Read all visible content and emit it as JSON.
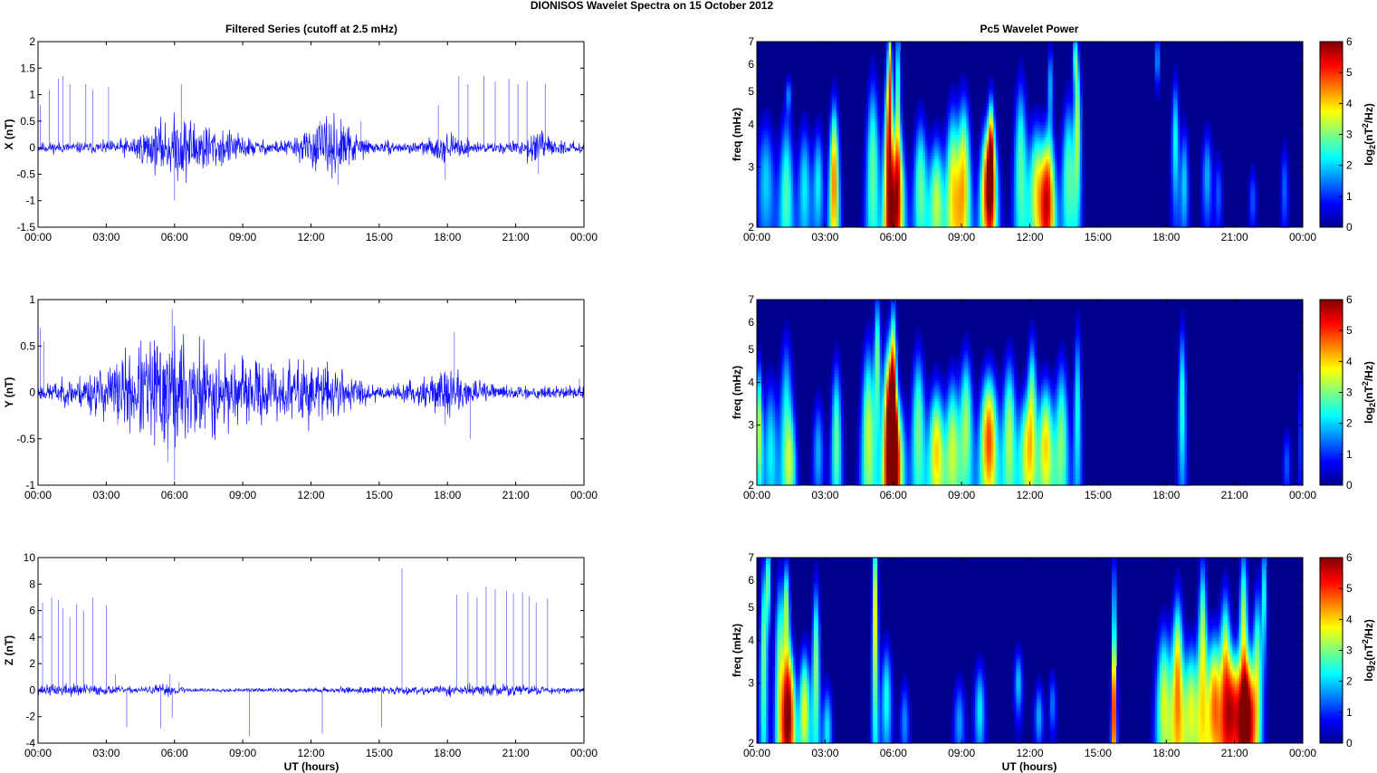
{
  "figure": {
    "suptitle": "DIONISOS Wavelet Spectra on 15 October   2012",
    "left_title": "Filtered Series (cutoff at 2.5 mHz)",
    "right_title": "Pc5 Wavelet Power",
    "xlabel": "UT (hours)",
    "colorbar_label": "log2(nT2/Hz)"
  },
  "colors": {
    "trace": "#1010ff",
    "background": "#00008f"
  },
  "chart_data": [
    {
      "type": "line",
      "panel": "X component",
      "ylabel": "X (nT)",
      "xticks": [
        "00:00",
        "03:00",
        "06:00",
        "09:00",
        "12:00",
        "15:00",
        "18:00",
        "21:00",
        "00:00"
      ],
      "xlim_hours": [
        0,
        24
      ],
      "ylim": [
        -1.5,
        2
      ],
      "yticks": [
        "-1.5",
        "-1",
        "-0.5",
        "0",
        "0.5",
        "1",
        "1.5",
        "2"
      ],
      "baseline_noise": 0.07,
      "activity": [
        [
          5.8,
          0.22,
          1.2
        ],
        [
          6.6,
          0.15,
          0.8
        ],
        [
          8.2,
          0.12,
          0.9
        ],
        [
          12.6,
          0.18,
          1.0
        ],
        [
          13.1,
          0.14,
          0.6
        ],
        [
          18.0,
          0.1,
          0.6
        ],
        [
          21.9,
          0.12,
          0.5
        ]
      ],
      "spikes": [
        [
          0.1,
          0.8
        ],
        [
          0.5,
          1.1
        ],
        [
          0.9,
          1.3
        ],
        [
          1.1,
          1.35
        ],
        [
          1.4,
          1.2
        ],
        [
          2.1,
          1.2
        ],
        [
          2.4,
          1.1
        ],
        [
          3.1,
          1.15
        ],
        [
          6.3,
          1.2
        ],
        [
          12.4,
          0.5
        ],
        [
          14.2,
          0.5
        ],
        [
          17.6,
          0.8
        ],
        [
          18.5,
          1.35
        ],
        [
          18.9,
          1.2
        ],
        [
          19.6,
          1.35
        ],
        [
          20.1,
          1.25
        ],
        [
          20.7,
          1.3
        ],
        [
          21.1,
          1.2
        ],
        [
          21.5,
          1.25
        ],
        [
          22.3,
          1.2
        ],
        [
          4.8,
          -0.3
        ],
        [
          6.0,
          -1.0
        ],
        [
          13.2,
          -0.7
        ],
        [
          17.9,
          -0.6
        ],
        [
          22.0,
          -0.5
        ]
      ],
      "noise_seed": 11
    },
    {
      "type": "line",
      "panel": "Y component",
      "ylabel": "Y (nT)",
      "xticks": [
        "00:00",
        "03:00",
        "06:00",
        "09:00",
        "12:00",
        "15:00",
        "18:00",
        "21:00",
        "00:00"
      ],
      "xlim_hours": [
        0,
        24
      ],
      "ylim": [
        -1,
        1
      ],
      "yticks": [
        "-1",
        "-0.5",
        "0",
        "0.5",
        "1"
      ],
      "baseline_noise": 0.05,
      "activity": [
        [
          3.5,
          0.14,
          1.5
        ],
        [
          5.9,
          0.32,
          1.3
        ],
        [
          7.5,
          0.14,
          1.2
        ],
        [
          10.3,
          0.15,
          1.2
        ],
        [
          12.6,
          0.14,
          1.1
        ],
        [
          18.0,
          0.1,
          1.0
        ]
      ],
      "spikes": [
        [
          0.1,
          0.7
        ],
        [
          0.25,
          0.55
        ],
        [
          5.9,
          0.9
        ],
        [
          6.0,
          -0.95
        ],
        [
          5.7,
          -0.75
        ],
        [
          3.5,
          -0.35
        ],
        [
          18.3,
          0.65
        ],
        [
          19.0,
          -0.5
        ],
        [
          17.9,
          -0.35
        ],
        [
          23.8,
          0.15
        ]
      ],
      "noise_seed": 23
    },
    {
      "type": "line",
      "panel": "Z component",
      "ylabel": "Z (nT)",
      "xticks": [
        "00:00",
        "03:00",
        "06:00",
        "09:00",
        "12:00",
        "15:00",
        "18:00",
        "21:00",
        "00:00"
      ],
      "xlim_hours": [
        0,
        24
      ],
      "ylim": [
        -4,
        10
      ],
      "yticks": [
        "-4",
        "-2",
        "0",
        "2",
        "4",
        "6",
        "8",
        "10"
      ],
      "baseline_noise": 0.09,
      "activity": [
        [
          1.5,
          0.25,
          1.5
        ],
        [
          5.6,
          0.2,
          0.6
        ],
        [
          17.0,
          0.12,
          3.0
        ],
        [
          20.5,
          0.15,
          2.0
        ]
      ],
      "spikes": [
        [
          0.2,
          6.6
        ],
        [
          0.6,
          7.0
        ],
        [
          0.9,
          6.8
        ],
        [
          1.1,
          6.2
        ],
        [
          1.4,
          5.5
        ],
        [
          1.7,
          6.5
        ],
        [
          2.0,
          6.0
        ],
        [
          2.4,
          7.0
        ],
        [
          3.0,
          6.4
        ],
        [
          3.4,
          1.2
        ],
        [
          5.8,
          1.2
        ],
        [
          16.0,
          9.2
        ],
        [
          18.4,
          7.2
        ],
        [
          18.9,
          7.4
        ],
        [
          19.3,
          7.0
        ],
        [
          19.7,
          7.8
        ],
        [
          20.1,
          7.6
        ],
        [
          20.6,
          7.5
        ],
        [
          20.9,
          7.3
        ],
        [
          21.3,
          7.4
        ],
        [
          21.6,
          7.1
        ],
        [
          21.9,
          6.6
        ],
        [
          22.4,
          6.9
        ],
        [
          3.9,
          -2.8
        ],
        [
          5.4,
          -2.9
        ],
        [
          5.9,
          -2.1
        ],
        [
          9.3,
          -3.5
        ],
        [
          12.5,
          -3.3
        ],
        [
          15.1,
          -2.8
        ],
        [
          6.2,
          0.6
        ],
        [
          4.8,
          0.2
        ]
      ],
      "noise_seed": 37
    },
    {
      "type": "heatmap",
      "panel": "X wavelet power",
      "ylabel": "freq (mHz)",
      "yticks": [
        "2",
        "3",
        "4",
        "5",
        "6",
        "7"
      ],
      "xticks": [
        "00:00",
        "03:00",
        "06:00",
        "09:00",
        "12:00",
        "15:00",
        "18:00",
        "21:00",
        "00:00"
      ],
      "colorbar_ticks": [
        "0",
        "1",
        "2",
        "3",
        "4",
        "5",
        "6"
      ],
      "blobs": [
        [
          0.4,
          2.7,
          0.25,
          0.9,
          2.0
        ],
        [
          1.3,
          2.5,
          0.2,
          1.1,
          2.7
        ],
        [
          1.4,
          4.9,
          0.1,
          0.4,
          1.5
        ],
        [
          2.1,
          2.6,
          0.18,
          0.9,
          2.2
        ],
        [
          2.7,
          2.7,
          0.15,
          0.8,
          2.2
        ],
        [
          3.4,
          2.7,
          0.14,
          1.2,
          4.6
        ],
        [
          5.1,
          2.9,
          0.2,
          1.6,
          2.9
        ],
        [
          5.8,
          2.9,
          0.15,
          2.0,
          5.0
        ],
        [
          5.85,
          6.0,
          0.08,
          1.6,
          3.0
        ],
        [
          6.2,
          2.4,
          0.2,
          0.9,
          4.0
        ],
        [
          6.2,
          4.8,
          0.1,
          2.0,
          3.0
        ],
        [
          7.2,
          2.6,
          0.2,
          1.0,
          2.9
        ],
        [
          7.9,
          2.4,
          0.2,
          0.8,
          3.3
        ],
        [
          8.6,
          2.6,
          0.2,
          1.2,
          3.5
        ],
        [
          9.1,
          2.7,
          0.2,
          1.3,
          3.9
        ],
        [
          10.2,
          2.6,
          0.22,
          0.9,
          5.8
        ],
        [
          10.3,
          3.6,
          0.1,
          0.9,
          3.0
        ],
        [
          11.6,
          3.0,
          0.2,
          1.5,
          2.8
        ],
        [
          12.3,
          2.6,
          0.22,
          0.9,
          3.4
        ],
        [
          12.8,
          2.4,
          0.2,
          0.9,
          5.0
        ],
        [
          13.7,
          2.8,
          0.2,
          1.2,
          2.8
        ],
        [
          14.1,
          4.0,
          0.12,
          1.5,
          3.2
        ],
        [
          14.0,
          6.3,
          0.1,
          0.8,
          2.5
        ],
        [
          12.9,
          5.2,
          0.1,
          1.0,
          2.0
        ],
        [
          17.6,
          6.2,
          0.08,
          0.8,
          2.0
        ],
        [
          18.4,
          3.6,
          0.12,
          1.2,
          2.4
        ],
        [
          18.8,
          2.7,
          0.12,
          0.8,
          2.0
        ],
        [
          19.8,
          2.8,
          0.15,
          0.7,
          1.8
        ],
        [
          20.3,
          2.5,
          0.1,
          0.5,
          1.3
        ],
        [
          21.8,
          2.4,
          0.1,
          0.4,
          1.3
        ],
        [
          23.2,
          2.6,
          0.1,
          0.6,
          1.4
        ]
      ]
    },
    {
      "type": "heatmap",
      "panel": "Y wavelet power",
      "ylabel": "freq (mHz)",
      "yticks": [
        "2",
        "3",
        "4",
        "5",
        "6",
        "7"
      ],
      "xticks": [
        "00:00",
        "03:00",
        "06:00",
        "09:00",
        "12:00",
        "15:00",
        "18:00",
        "21:00",
        "00:00"
      ],
      "colorbar_ticks": [
        "0",
        "1",
        "2",
        "3",
        "4",
        "5",
        "6"
      ],
      "blobs": [
        [
          0.1,
          3.0,
          0.1,
          1.0,
          3.4
        ],
        [
          0.6,
          2.5,
          0.2,
          1.0,
          2.2
        ],
        [
          1.3,
          3.0,
          0.2,
          1.5,
          2.4
        ],
        [
          1.5,
          2.3,
          0.15,
          0.6,
          1.8
        ],
        [
          2.7,
          2.5,
          0.15,
          0.7,
          1.8
        ],
        [
          3.5,
          2.7,
          0.15,
          1.2,
          2.9
        ],
        [
          4.9,
          2.8,
          0.2,
          1.5,
          3.4
        ],
        [
          5.3,
          4.8,
          0.12,
          1.6,
          3.0
        ],
        [
          5.8,
          2.8,
          0.18,
          1.5,
          5.7
        ],
        [
          6.0,
          3.6,
          0.12,
          2.0,
          4.6
        ],
        [
          6.2,
          2.4,
          0.2,
          0.8,
          3.5
        ],
        [
          7.1,
          2.9,
          0.2,
          1.3,
          3.0
        ],
        [
          7.9,
          2.5,
          0.22,
          0.9,
          4.0
        ],
        [
          8.6,
          2.6,
          0.2,
          1.0,
          3.3
        ],
        [
          9.2,
          3.0,
          0.2,
          1.2,
          3.2
        ],
        [
          10.2,
          2.7,
          0.25,
          1.0,
          4.9
        ],
        [
          11.1,
          2.8,
          0.2,
          1.2,
          3.3
        ],
        [
          11.8,
          2.5,
          0.2,
          0.8,
          3.0
        ],
        [
          12.1,
          3.4,
          0.15,
          1.3,
          3.0
        ],
        [
          12.7,
          2.6,
          0.22,
          0.9,
          4.0
        ],
        [
          13.4,
          2.7,
          0.2,
          1.2,
          3.0
        ],
        [
          14.1,
          3.3,
          0.12,
          1.6,
          2.4
        ],
        [
          18.7,
          3.5,
          0.12,
          1.5,
          2.6
        ],
        [
          23.3,
          2.3,
          0.1,
          0.4,
          1.3
        ],
        [
          23.9,
          2.8,
          0.05,
          1.0,
          1.4
        ]
      ]
    },
    {
      "type": "heatmap",
      "panel": "Z wavelet power",
      "ylabel": "freq (mHz)",
      "yticks": [
        "2",
        "3",
        "4",
        "5",
        "6",
        "7"
      ],
      "xticks": [
        "00:00",
        "03:00",
        "06:00",
        "09:00",
        "12:00",
        "15:00",
        "18:00",
        "21:00",
        "00:00"
      ],
      "colorbar_ticks": [
        "0",
        "1",
        "2",
        "3",
        "4",
        "5",
        "6"
      ],
      "blobs": [
        [
          0.3,
          3.6,
          0.12,
          2.0,
          3.0
        ],
        [
          0.5,
          6.0,
          0.1,
          1.2,
          3.0
        ],
        [
          1.0,
          3.3,
          0.15,
          1.8,
          3.0
        ],
        [
          1.4,
          2.4,
          0.18,
          0.9,
          5.8
        ],
        [
          1.3,
          5.0,
          0.12,
          1.2,
          3.3
        ],
        [
          2.1,
          2.5,
          0.15,
          0.8,
          3.7
        ],
        [
          2.6,
          3.4,
          0.12,
          1.6,
          3.2
        ],
        [
          3.1,
          2.2,
          0.12,
          0.5,
          2.2
        ],
        [
          5.2,
          4.9,
          0.1,
          2.5,
          4.2
        ],
        [
          5.7,
          2.7,
          0.15,
          0.8,
          2.4
        ],
        [
          6.5,
          2.3,
          0.12,
          0.5,
          1.6
        ],
        [
          8.9,
          2.3,
          0.15,
          0.5,
          1.7
        ],
        [
          9.8,
          2.5,
          0.15,
          0.6,
          2.2
        ],
        [
          11.5,
          3.0,
          0.12,
          0.5,
          2.0
        ],
        [
          12.4,
          2.4,
          0.12,
          0.4,
          1.8
        ],
        [
          13.0,
          2.6,
          0.1,
          0.4,
          1.5
        ],
        [
          15.7,
          2.4,
          0.07,
          0.9,
          4.2
        ],
        [
          15.7,
          5.0,
          0.04,
          2.0,
          5.0
        ],
        [
          17.9,
          2.6,
          0.22,
          1.1,
          3.5
        ],
        [
          18.5,
          3.0,
          0.18,
          1.5,
          4.3
        ],
        [
          19.1,
          2.5,
          0.22,
          0.9,
          3.5
        ],
        [
          19.6,
          3.7,
          0.15,
          2.0,
          3.6
        ],
        [
          20.1,
          2.6,
          0.2,
          1.0,
          4.4
        ],
        [
          20.6,
          3.1,
          0.18,
          1.5,
          4.0
        ],
        [
          21.0,
          2.5,
          0.22,
          0.8,
          4.5
        ],
        [
          21.6,
          2.4,
          0.2,
          0.8,
          4.9
        ],
        [
          21.4,
          4.3,
          0.15,
          2.0,
          3.5
        ],
        [
          22.0,
          3.3,
          0.15,
          1.5,
          3.0
        ],
        [
          22.3,
          5.5,
          0.1,
          1.5,
          2.6
        ]
      ]
    }
  ]
}
